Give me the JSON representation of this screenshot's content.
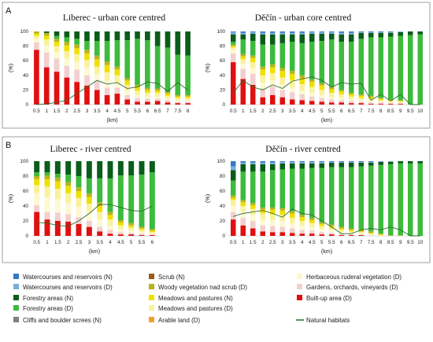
{
  "panels": [
    {
      "letter": "A"
    },
    {
      "letter": "B"
    }
  ],
  "colors": {
    "Watercourses and reservoirs (N)": "#3a78c0",
    "Watercourses and reservoirs (D)": "#7aaee0",
    "Forestry areas (N)": "#0a5d1a",
    "Forestry areas (D)": "#3cbb3c",
    "Cliffs and boulder screes (N)": "#808080",
    "Scrub (N)": "#9a5b1b",
    "Woody vegetation nad scrub (D)": "#b8b420",
    "Meadows and pastures (N)": "#f0e000",
    "Meadows and pastures (D)": "#faf29a",
    "Arable land (D)": "#f2a030",
    "Herbaceous ruderal vegetation (D)": "#fcf8d2",
    "Gardens, orchards, vineyards (D)": "#f3cfcf",
    "Built-up area (D)": "#e01010",
    "Natural habitats": "#2e6b2e"
  },
  "legend": {
    "items": [
      {
        "label": "Watercourses and reservoirs (N)",
        "kind": "swatch"
      },
      {
        "label": "Watercourses and reservoirs (D)",
        "kind": "swatch"
      },
      {
        "label": "Forestry areas (N)",
        "kind": "swatch"
      },
      {
        "label": "Forestry areas (D)",
        "kind": "swatch"
      },
      {
        "label": "Cliffs and boulder screes (N)",
        "kind": "swatch"
      },
      {
        "label": "Scrub (N)",
        "kind": "swatch"
      },
      {
        "label": "Woody vegetation nad scrub (D)",
        "kind": "swatch"
      },
      {
        "label": "Meadows and pastures (N)",
        "kind": "swatch"
      },
      {
        "label": "Meadows and pastures (D)",
        "kind": "swatch"
      },
      {
        "label": "Arable land (D)",
        "kind": "swatch"
      },
      {
        "label": "Herbaceous ruderal vegetation (D)",
        "kind": "swatch"
      },
      {
        "label": "Gardens, orchards, vineyards (D)",
        "kind": "swatch"
      },
      {
        "label": "Built-up area (D)",
        "kind": "swatch"
      },
      {
        "label": "Natural habitats",
        "kind": "line"
      }
    ]
  },
  "chart_data": [
    {
      "type": "bar",
      "stacked": true,
      "title": "Liberec - urban core centred",
      "xlabel": "(km)",
      "ylabel": "(%)",
      "ylim": [
        0,
        100
      ],
      "yticks": [
        0,
        20,
        40,
        60,
        80,
        100
      ],
      "categories": [
        "0.5",
        "1",
        "1.5",
        "2",
        "2.5",
        "3",
        "3.5",
        "4",
        "4.5",
        "5",
        "5.5",
        "6",
        "6.5",
        "7",
        "7.5",
        "8"
      ],
      "series": [
        {
          "name": "Built-up area (D)",
          "values": [
            75,
            51,
            45,
            37,
            31,
            26,
            20,
            13,
            15,
            7,
            4,
            4,
            5,
            3,
            2,
            2
          ]
        },
        {
          "name": "Gardens, orchards, vineyards (D)",
          "values": [
            10,
            20,
            18,
            16,
            17,
            14,
            12,
            10,
            8,
            6,
            5,
            4,
            3,
            3,
            2,
            2
          ]
        },
        {
          "name": "Herbaceous ruderal vegetation (D)",
          "values": [
            5,
            10,
            9,
            10,
            11,
            11,
            10,
            9,
            7,
            6,
            4,
            3,
            3,
            2,
            2,
            2
          ]
        },
        {
          "name": "Meadows and pastures (D)",
          "values": [
            4,
            8,
            8,
            10,
            10,
            10,
            10,
            12,
            10,
            8,
            6,
            5,
            5,
            4,
            3,
            3
          ]
        },
        {
          "name": "Meadows and pastures (N)",
          "values": [
            3,
            5,
            6,
            8,
            8,
            9,
            10,
            10,
            8,
            6,
            5,
            4,
            3,
            3,
            2,
            2
          ]
        },
        {
          "name": "Woody vegetation nad scrub (D)",
          "values": [
            3,
            4,
            4,
            5,
            5,
            5,
            5,
            5,
            4,
            3,
            3,
            3,
            3,
            2,
            2,
            2
          ]
        },
        {
          "name": "Forestry areas (D)",
          "values": [
            0,
            0,
            4,
            6,
            8,
            12,
            20,
            28,
            36,
            52,
            63,
            65,
            58,
            61,
            55,
            54
          ]
        },
        {
          "name": "Forestry areas (N)",
          "values": [
            0,
            2,
            6,
            8,
            10,
            13,
            13,
            13,
            12,
            12,
            10,
            12,
            20,
            22,
            32,
            33
          ]
        }
      ],
      "natural_habitats": [
        0,
        1,
        3,
        6,
        15,
        24,
        33,
        28,
        30,
        22,
        24,
        31,
        29,
        18,
        30,
        20
      ]
    },
    {
      "type": "bar",
      "stacked": true,
      "title": "Děčín - urban core centred",
      "xlabel": "(km)",
      "ylabel": "(%)",
      "ylim": [
        0,
        100
      ],
      "yticks": [
        0,
        20,
        40,
        60,
        80,
        100
      ],
      "categories": [
        "0.5",
        "1",
        "1.5",
        "2",
        "2.5",
        "3",
        "3.5",
        "4",
        "4.5",
        "5",
        "5.5",
        "6",
        "6.5",
        "7",
        "7.5",
        "8",
        "8.5",
        "9",
        "9.5",
        "10"
      ],
      "series": [
        {
          "name": "Built-up area (D)",
          "values": [
            58,
            35,
            27,
            10,
            13,
            10,
            7,
            6,
            5,
            4,
            3,
            3,
            2,
            2,
            1,
            1,
            1,
            1,
            0,
            0
          ]
        },
        {
          "name": "Gardens, orchards, vineyards (D)",
          "values": [
            12,
            14,
            15,
            12,
            12,
            10,
            10,
            8,
            6,
            5,
            4,
            3,
            3,
            2,
            2,
            2,
            1,
            1,
            0,
            0
          ]
        },
        {
          "name": "Herbaceous ruderal vegetation (D)",
          "values": [
            5,
            7,
            8,
            8,
            8,
            7,
            6,
            5,
            5,
            4,
            3,
            3,
            2,
            2,
            2,
            1,
            1,
            1,
            0,
            0
          ]
        },
        {
          "name": "Meadows and pastures (D)",
          "values": [
            3,
            6,
            8,
            10,
            10,
            10,
            10,
            9,
            8,
            7,
            6,
            5,
            4,
            3,
            3,
            2,
            2,
            1,
            0,
            0
          ]
        },
        {
          "name": "Meadows and pastures (N)",
          "values": [
            2,
            4,
            6,
            8,
            8,
            9,
            9,
            8,
            7,
            6,
            5,
            4,
            3,
            3,
            2,
            2,
            1,
            1,
            0,
            0
          ]
        },
        {
          "name": "Woody vegetation nad scrub (D)",
          "values": [
            2,
            3,
            3,
            4,
            4,
            4,
            4,
            4,
            3,
            3,
            3,
            2,
            2,
            2,
            2,
            1,
            1,
            1,
            0,
            0
          ]
        },
        {
          "name": "Forestry areas (D)",
          "values": [
            4,
            20,
            20,
            30,
            27,
            34,
            40,
            44,
            52,
            58,
            65,
            66,
            70,
            76,
            80,
            83,
            86,
            88,
            95,
            96
          ]
        },
        {
          "name": "Forestry areas (N)",
          "values": [
            10,
            7,
            10,
            14,
            14,
            12,
            10,
            12,
            11,
            10,
            8,
            10,
            10,
            8,
            6,
            6,
            5,
            5,
            5,
            4
          ]
        },
        {
          "name": "Watercourses and reservoirs (D)",
          "values": [
            3,
            2,
            2,
            2,
            2,
            2,
            2,
            2,
            2,
            2,
            2,
            2,
            2,
            1,
            1,
            1,
            1,
            1,
            0,
            0
          ]
        },
        {
          "name": "Watercourses and reservoirs (N)",
          "values": [
            1,
            2,
            1,
            2,
            2,
            2,
            2,
            2,
            1,
            1,
            1,
            2,
            2,
            1,
            1,
            1,
            1,
            0,
            0,
            0
          ]
        }
      ],
      "natural_habitats": [
        16,
        33,
        24,
        20,
        27,
        22,
        32,
        35,
        38,
        33,
        24,
        30,
        28,
        29,
        6,
        14,
        5,
        14,
        0,
        0
      ]
    },
    {
      "type": "bar",
      "stacked": true,
      "title": "Liberec - river centred",
      "xlabel": "(km)",
      "ylabel": "(%)",
      "ylim": [
        0,
        100
      ],
      "yticks": [
        0,
        20,
        40,
        60,
        80,
        100
      ],
      "categories": [
        "0.5",
        "1",
        "1.5",
        "2",
        "2.5",
        "3",
        "3.5",
        "4",
        "4.5",
        "5",
        "5.5",
        "6"
      ],
      "series": [
        {
          "name": "Built-up area (D)",
          "values": [
            32,
            22,
            20,
            19,
            16,
            12,
            6,
            3,
            2,
            2,
            1,
            1
          ]
        },
        {
          "name": "Gardens, orchards, vineyards (D)",
          "values": [
            9,
            10,
            11,
            10,
            9,
            8,
            6,
            5,
            3,
            2,
            2,
            1
          ]
        },
        {
          "name": "Herbaceous ruderal vegetation (D)",
          "values": [
            16,
            20,
            18,
            15,
            14,
            12,
            10,
            6,
            4,
            3,
            2,
            1
          ]
        },
        {
          "name": "Meadows and pastures (D)",
          "values": [
            11,
            14,
            14,
            13,
            12,
            11,
            10,
            8,
            5,
            4,
            3,
            2
          ]
        },
        {
          "name": "Meadows and pastures (N)",
          "values": [
            8,
            10,
            10,
            10,
            9,
            9,
            8,
            6,
            4,
            3,
            2,
            2
          ]
        },
        {
          "name": "Woody vegetation nad scrub (D)",
          "values": [
            4,
            5,
            5,
            5,
            5,
            5,
            5,
            4,
            3,
            3,
            2,
            2
          ]
        },
        {
          "name": "Forestry areas (D)",
          "values": [
            5,
            4,
            5,
            10,
            15,
            20,
            32,
            45,
            60,
            64,
            70,
            76
          ]
        },
        {
          "name": "Forestry areas (N)",
          "values": [
            15,
            15,
            17,
            18,
            20,
            23,
            23,
            23,
            19,
            19,
            18,
            15
          ]
        }
      ],
      "natural_habitats": [
        18,
        17,
        14,
        13,
        20,
        30,
        42,
        42,
        38,
        34,
        33,
        40
      ]
    },
    {
      "type": "bar",
      "stacked": true,
      "title": "Děčín - river centred",
      "xlabel": "(km)",
      "ylabel": "(%)",
      "ylim": [
        0,
        100
      ],
      "yticks": [
        0,
        20,
        40,
        60,
        80,
        100
      ],
      "categories": [
        "0.5",
        "1",
        "1.5",
        "2",
        "2.5",
        "3",
        "3.5",
        "4",
        "4.5",
        "5",
        "5.5",
        "6",
        "6.5",
        "7",
        "7.5",
        "8",
        "8.5",
        "9",
        "9.5",
        "10"
      ],
      "series": [
        {
          "name": "Built-up area (D)",
          "values": [
            22,
            14,
            10,
            6,
            5,
            5,
            4,
            3,
            3,
            2,
            2,
            1,
            1,
            1,
            0,
            0,
            0,
            0,
            0,
            0
          ]
        },
        {
          "name": "Gardens, orchards, vineyards (D)",
          "values": [
            10,
            10,
            10,
            8,
            8,
            7,
            6,
            5,
            4,
            3,
            2,
            2,
            1,
            1,
            1,
            0,
            0,
            0,
            0,
            0
          ]
        },
        {
          "name": "Herbaceous ruderal vegetation (D)",
          "values": [
            8,
            8,
            8,
            8,
            8,
            8,
            7,
            6,
            5,
            4,
            3,
            2,
            2,
            1,
            1,
            0,
            0,
            0,
            0,
            0
          ]
        },
        {
          "name": "Meadows and pastures (D)",
          "values": [
            8,
            8,
            8,
            8,
            8,
            8,
            7,
            6,
            5,
            4,
            3,
            3,
            2,
            2,
            1,
            1,
            0,
            0,
            0,
            0
          ]
        },
        {
          "name": "Meadows and pastures (N)",
          "values": [
            3,
            5,
            5,
            5,
            6,
            6,
            6,
            5,
            4,
            3,
            3,
            2,
            2,
            1,
            1,
            1,
            0,
            0,
            0,
            0
          ]
        },
        {
          "name": "Woody vegetation nad scrub (D)",
          "values": [
            3,
            3,
            3,
            3,
            3,
            3,
            3,
            3,
            3,
            2,
            2,
            2,
            2,
            2,
            2,
            1,
            1,
            1,
            0,
            0
          ]
        },
        {
          "name": "Forestry areas (D)",
          "values": [
            20,
            38,
            42,
            48,
            50,
            52,
            57,
            62,
            67,
            73,
            77,
            80,
            82,
            85,
            88,
            92,
            95,
            96,
            97,
            97
          ]
        },
        {
          "name": "Forestry areas (N)",
          "values": [
            14,
            10,
            10,
            10,
            8,
            8,
            7,
            7,
            6,
            6,
            6,
            6,
            6,
            5,
            4,
            4,
            3,
            3,
            3,
            3
          ]
        },
        {
          "name": "Watercourses and reservoirs (D)",
          "values": [
            5,
            2,
            2,
            2,
            2,
            2,
            2,
            2,
            2,
            2,
            1,
            1,
            1,
            1,
            1,
            1,
            1,
            0,
            0,
            0
          ]
        },
        {
          "name": "Watercourses and reservoirs (N)",
          "values": [
            7,
            2,
            2,
            2,
            2,
            1,
            1,
            1,
            1,
            1,
            1,
            1,
            1,
            1,
            1,
            0,
            0,
            0,
            0,
            0
          ]
        }
      ],
      "natural_habitats": [
        26,
        30,
        32,
        34,
        30,
        25,
        36,
        30,
        28,
        20,
        12,
        3,
        3,
        8,
        10,
        8,
        12,
        8,
        0,
        0
      ]
    }
  ]
}
